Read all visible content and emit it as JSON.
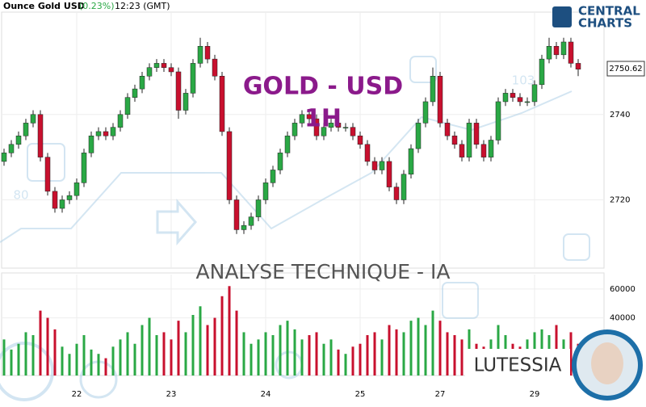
{
  "chart_data": {
    "type": "candlestick",
    "title": "Ounce Gold USD",
    "change": "(0.23%)",
    "time": "12:23 (GMT)",
    "categories": [
      null,
      null,
      null,
      null,
      null,
      null,
      null,
      null,
      null,
      null,
      "22",
      null,
      null,
      null,
      null,
      null,
      null,
      null,
      null,
      null,
      null,
      null,
      null,
      "23",
      null,
      null,
      null,
      null,
      null,
      null,
      null,
      null,
      null,
      null,
      null,
      null,
      "24",
      null,
      null,
      null,
      null,
      null,
      null,
      null,
      null,
      null,
      null,
      null,
      null,
      "25",
      null,
      null,
      null,
      null,
      null,
      null,
      null,
      null,
      null,
      null,
      "27",
      null,
      null,
      null,
      null,
      null,
      null,
      null,
      null,
      null,
      null,
      null,
      null,
      "29",
      null,
      null,
      null,
      null,
      null,
      null
    ],
    "open": [
      2729,
      2731,
      2733,
      2735,
      2738,
      2740,
      2730,
      2722,
      2718,
      2720,
      2721,
      2724,
      2731,
      2735,
      2736,
      2735,
      2737,
      2740,
      2744,
      2746,
      2749,
      2751,
      2752,
      2751,
      2750,
      2741,
      2745,
      2752,
      2756,
      2753,
      2749,
      2736,
      2720,
      2713,
      2714,
      2716,
      2720,
      2724,
      2727,
      2731,
      2735,
      2738,
      2740,
      2739,
      2735,
      2737,
      2738,
      2737,
      2737,
      2735,
      2733,
      2729,
      2727,
      2729,
      2723,
      2720,
      2726,
      2732,
      2738,
      2743,
      2749,
      2738,
      2735,
      2733,
      2730,
      2738,
      2733,
      2730,
      2734,
      2743,
      2745,
      2744,
      2743,
      2743,
      2747,
      2753,
      2756,
      2754,
      2757,
      2752
    ],
    "high": [
      2732,
      2734,
      2736,
      2739,
      2741,
      2741,
      2731,
      2723,
      2721,
      2722,
      2725,
      2732,
      2736,
      2737,
      2737,
      2738,
      2741,
      2745,
      2747,
      2750,
      2752,
      2753,
      2753,
      2752,
      2751,
      2746,
      2753,
      2758,
      2757,
      2754,
      2750,
      2737,
      2721,
      2715,
      2717,
      2721,
      2725,
      2728,
      2732,
      2736,
      2739,
      2741,
      2741,
      2740,
      2738,
      2739,
      2739,
      2738,
      2738,
      2736,
      2734,
      2730,
      2730,
      2730,
      2724,
      2727,
      2733,
      2739,
      2744,
      2751,
      2750,
      2739,
      2736,
      2734,
      2739,
      2739,
      2734,
      2735,
      2744,
      2746,
      2746,
      2745,
      2744,
      2748,
      2754,
      2758,
      2757,
      2758,
      2758,
      2753
    ],
    "low": [
      2728,
      2730,
      2732,
      2734,
      2737,
      2729,
      2721,
      2717,
      2717,
      2719,
      2720,
      2723,
      2730,
      2734,
      2734,
      2734,
      2736,
      2739,
      2743,
      2745,
      2748,
      2750,
      2750,
      2749,
      2739,
      2740,
      2744,
      2751,
      2752,
      2748,
      2735,
      2719,
      2712,
      2712,
      2713,
      2715,
      2719,
      2723,
      2726,
      2730,
      2734,
      2737,
      2738,
      2734,
      2734,
      2736,
      2736,
      2736,
      2734,
      2732,
      2728,
      2726,
      2726,
      2722,
      2719,
      2719,
      2725,
      2731,
      2737,
      2742,
      2737,
      2734,
      2732,
      2729,
      2729,
      2732,
      2729,
      2729,
      2733,
      2742,
      2743,
      2742,
      2742,
      2742,
      2746,
      2752,
      2753,
      2753,
      2751,
      2749
    ],
    "close": [
      2731,
      2733,
      2735,
      2738,
      2740,
      2730,
      2722,
      2718,
      2720,
      2721,
      2724,
      2731,
      2735,
      2736,
      2735,
      2737,
      2740,
      2744,
      2746,
      2749,
      2751,
      2752,
      2751,
      2750,
      2741,
      2745,
      2752,
      2756,
      2753,
      2749,
      2736,
      2720,
      2713,
      2714,
      2716,
      2720,
      2724,
      2727,
      2731,
      2735,
      2738,
      2740,
      2739,
      2735,
      2737,
      2738,
      2737,
      2737,
      2735,
      2733,
      2729,
      2727,
      2729,
      2723,
      2720,
      2726,
      2732,
      2738,
      2743,
      2749,
      2738,
      2735,
      2733,
      2730,
      2738,
      2733,
      2730,
      2734,
      2743,
      2745,
      2744,
      2743,
      2743,
      2747,
      2753,
      2756,
      2754,
      2757,
      2752,
      2750.62
    ],
    "volume": [
      25000,
      18000,
      22000,
      30000,
      28000,
      45000,
      40000,
      32000,
      20000,
      15000,
      22000,
      28000,
      18000,
      15000,
      12000,
      20000,
      25000,
      30000,
      22000,
      35000,
      40000,
      28000,
      30000,
      25000,
      38000,
      30000,
      42000,
      48000,
      35000,
      40000,
      55000,
      62000,
      45000,
      30000,
      22000,
      25000,
      30000,
      28000,
      35000,
      38000,
      32000,
      25000,
      28000,
      30000,
      22000,
      25000,
      18000,
      15000,
      20000,
      22000,
      28000,
      30000,
      25000,
      35000,
      32000,
      30000,
      38000,
      40000,
      35000,
      45000,
      38000,
      30000,
      28000,
      25000,
      32000,
      22000,
      20000,
      25000,
      35000,
      28000,
      22000,
      20000,
      25000,
      30000,
      32000,
      28000,
      35000,
      25000,
      30000,
      22000
    ],
    "ylim": [
      2704,
      2764
    ],
    "yticks": [
      2720,
      2740
    ],
    "volume_ylim": [
      0,
      70000
    ],
    "volume_yticks": [
      40000,
      60000
    ],
    "last_price": "2750.62",
    "up_color": "#2aa845",
    "down_color": "#c8102e",
    "volume_line_color": "#4a90c8",
    "grid": true
  },
  "watermarks": {
    "instrument": "GOLD - USD",
    "timeframe": "1H",
    "analysis": "ANALYSE TECHNIQUE - IA",
    "brand": "LUTESSIA",
    "score_low": "80",
    "score_high": "103"
  },
  "logo": {
    "line1": "CENTRAL",
    "line2": "CHARTS"
  }
}
